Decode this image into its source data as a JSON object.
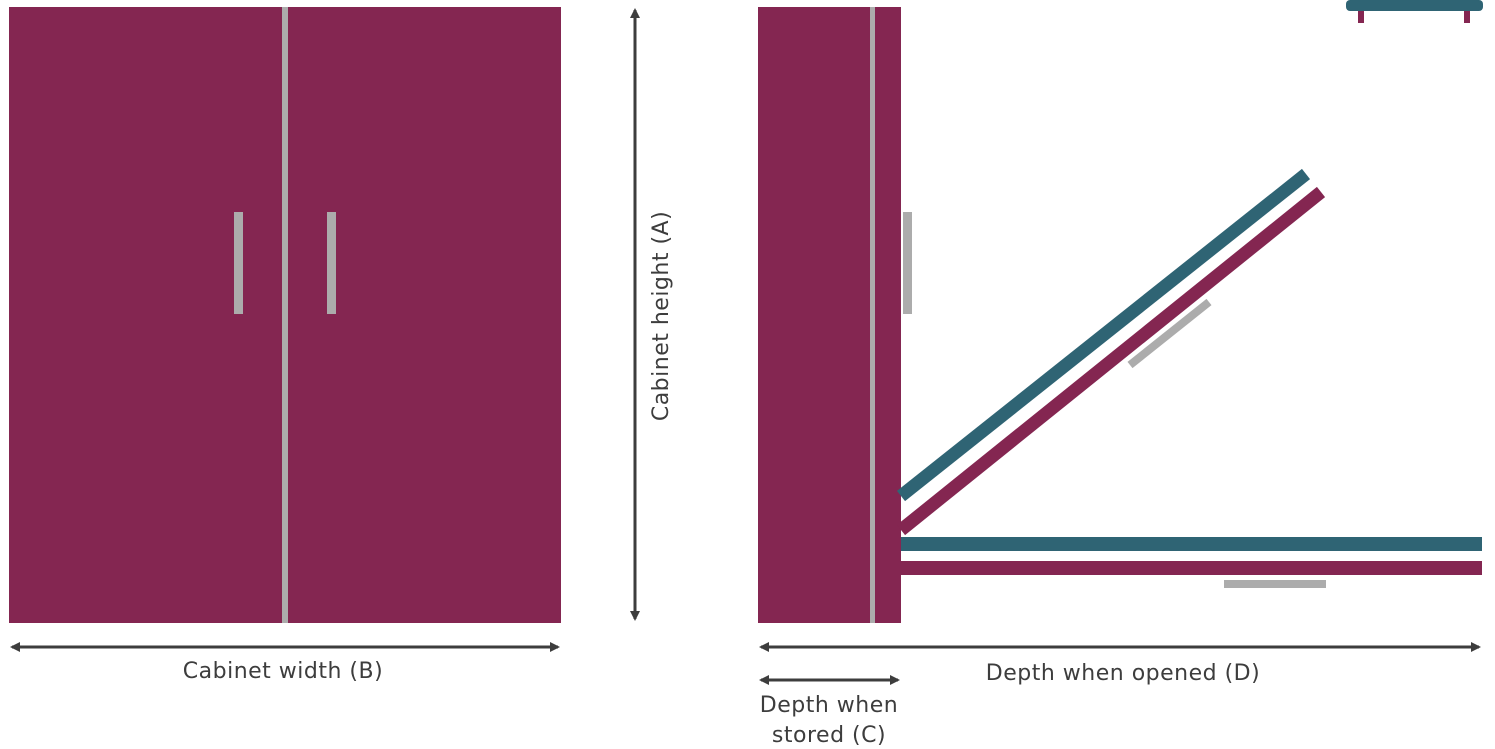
{
  "labels": {
    "cabinet_width": "Cabinet width (B)",
    "cabinet_height": "Cabinet height (A)",
    "depth_opened": "Depth when opened (D)",
    "depth_stored_line1": "Depth when",
    "depth_stored_line2": "stored (C)"
  },
  "colors": {
    "cabinet": "#842651",
    "bed_frame": "#2f6474",
    "handle": "#acacac",
    "arrow": "#3d3d3d"
  }
}
